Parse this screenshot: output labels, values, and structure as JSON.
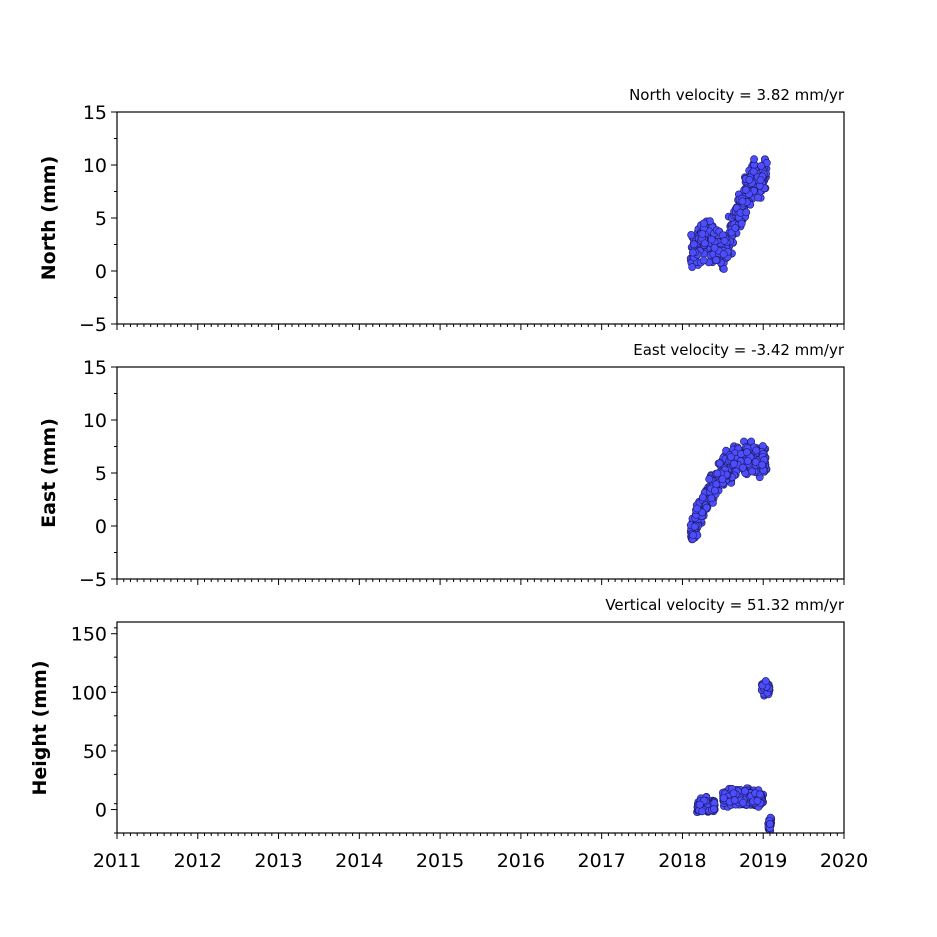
{
  "chart_data": [
    {
      "type": "scatter",
      "title": "North velocity = 3.82 mm/yr",
      "ylabel": "North (mm)",
      "xlim": [
        2011,
        2020
      ],
      "ylim": [
        -5,
        15
      ],
      "yticks": [
        -5,
        0,
        5,
        10,
        15
      ],
      "marker_color": "#4d4dff",
      "trend": [
        [
          2018.1,
          2.0
        ],
        [
          2018.3,
          3.0
        ],
        [
          2018.5,
          1.8
        ],
        [
          2018.65,
          4.5
        ],
        [
          2018.85,
          8.5
        ],
        [
          2019.05,
          9.0
        ]
      ],
      "spread": 1.4
    },
    {
      "type": "scatter",
      "title": "East velocity = -3.42 mm/yr",
      "ylabel": "East (mm)",
      "xlim": [
        2011,
        2020
      ],
      "ylim": [
        -5,
        15
      ],
      "yticks": [
        -5,
        0,
        5,
        10,
        15
      ],
      "marker_color": "#4d4dff",
      "trend": [
        [
          2018.1,
          -1.0
        ],
        [
          2018.3,
          2.5
        ],
        [
          2018.5,
          5.0
        ],
        [
          2018.75,
          6.5
        ],
        [
          2019.05,
          6.0
        ]
      ],
      "spread": 1.2
    },
    {
      "type": "scatter",
      "title": "Vertical velocity = 51.32 mm/yr",
      "ylabel": "Height (mm)",
      "xlim": [
        2011,
        2020
      ],
      "ylim": [
        -20,
        160
      ],
      "yticks": [
        0,
        50,
        100,
        150
      ],
      "marker_color": "#4d4dff",
      "segments": [
        {
          "x": [
            2018.18,
            2018.4
          ],
          "y": 3,
          "spread": 5
        },
        {
          "x": [
            2018.5,
            2019.0
          ],
          "y": 10,
          "spread": 6
        },
        {
          "x": [
            2018.98,
            2019.08
          ],
          "y": 103,
          "spread": 5
        },
        {
          "x": [
            2019.06,
            2019.1
          ],
          "y": -12,
          "spread": 6
        }
      ]
    }
  ],
  "xticks": [
    "2011",
    "2012",
    "2013",
    "2014",
    "2015",
    "2016",
    "2017",
    "2018",
    "2019",
    "2020"
  ]
}
